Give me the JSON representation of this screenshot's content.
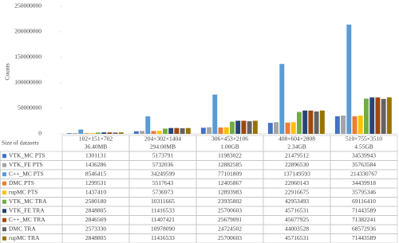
{
  "chart_data": {
    "type": "bar",
    "y_label": "Counts",
    "table_header": "Size of datasets",
    "categories": [
      "102×151×702",
      "204×302×1404",
      "306×453×2106",
      "408×604×2808",
      "510×755×3510"
    ],
    "category_sizes": [
      "36.40MB",
      "294.00MB",
      "1.00GB",
      "2.34GB",
      "4.55GB"
    ],
    "ylim": [
      0,
      250000000
    ],
    "yticks": [
      0,
      50000000,
      100000000,
      150000000,
      200000000,
      250000000
    ],
    "grid": false,
    "series": [
      {
        "name": "VTK_MC PTS",
        "color": "#4472c4",
        "values": [
          1301131,
          5173791,
          11983022,
          21479512,
          34539943
        ]
      },
      {
        "name": "VTK_FE PTS",
        "color": "#a5a5a5",
        "values": [
          1436286,
          5732036,
          12882585,
          22896530,
          35763584
        ]
      },
      {
        "name": "C++_MC PTS",
        "color": "#5b9bd5",
        "values": [
          8546415,
          34249599,
          77101809,
          137149593,
          214330767
        ]
      },
      {
        "name": "DMC PTS",
        "color": "#ed7d31",
        "values": [
          1299531,
          5517643,
          12405867,
          22060143,
          34439918
        ]
      },
      {
        "name": "rupMC PTS",
        "color": "#ffc000",
        "values": [
          1437410,
          5736973,
          12893983,
          22916675,
          35795346
        ]
      },
      {
        "name": "VTK_MC TRA",
        "color": "#70ad47",
        "values": [
          2580180,
          10311665,
          23935802,
          42953493,
          69116410
        ]
      },
      {
        "name": "VTK_FE TRA",
        "color": "#264478",
        "values": [
          2848805,
          11416533,
          25700603,
          45716531,
          71443589
        ]
      },
      {
        "name": "C++_MC TRA",
        "color": "#9e480e",
        "values": [
          2846569,
          11407421,
          25679091,
          45677925,
          71382241
        ]
      },
      {
        "name": "DMC TRA",
        "color": "#636363",
        "values": [
          2573330,
          10978090,
          24724502,
          44003528,
          68572936
        ]
      },
      {
        "name": "rupMC TRA",
        "color": "#997300",
        "values": [
          2848805,
          11416533,
          25700603,
          45716531,
          71443589
        ]
      }
    ]
  }
}
